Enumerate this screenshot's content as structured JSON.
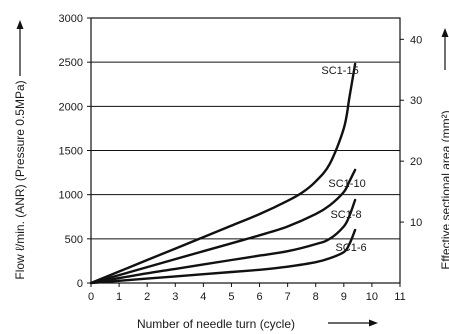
{
  "chart_data": {
    "type": "line",
    "xlabel": "Number of needle turn (cycle)",
    "ylabel": "Flow ℓ/min. (ANR) (Pressure 0.5MPa)",
    "y2label": "Effective sectional area (mm²)",
    "xlim": [
      0,
      11
    ],
    "ylim": [
      0,
      3000
    ],
    "y2lim": [
      0,
      43.5
    ],
    "xticks": [
      "0",
      "1",
      "2",
      "3",
      "4",
      "5",
      "6",
      "7",
      "8",
      "9",
      "10",
      "11"
    ],
    "yticks": [
      "0",
      "500",
      "1000",
      "1500",
      "2000",
      "2500",
      "3000"
    ],
    "y2ticks": [
      "10",
      "20",
      "30",
      "40"
    ],
    "grid_y": [
      500,
      1000,
      1500,
      2000,
      2500
    ],
    "series": [
      {
        "name": "SC1-15",
        "x": [
          0,
          1,
          2,
          3,
          4,
          5,
          6,
          7,
          7.5,
          8,
          8.5,
          9,
          9.2,
          9.4
        ],
        "y": [
          0,
          130,
          260,
          390,
          520,
          650,
          780,
          930,
          1020,
          1150,
          1350,
          1750,
          2100,
          2480
        ]
      },
      {
        "name": "SC1-10",
        "x": [
          0,
          1,
          2,
          3,
          4,
          5,
          6,
          7,
          8,
          8.5,
          9,
          9.2,
          9.4
        ],
        "y": [
          0,
          90,
          180,
          270,
          360,
          450,
          540,
          640,
          780,
          880,
          1030,
          1150,
          1280
        ]
      },
      {
        "name": "SC1-8",
        "x": [
          0,
          1,
          2,
          3,
          4,
          5,
          6,
          7,
          8,
          8.5,
          9,
          9.2,
          9.4
        ],
        "y": [
          0,
          55,
          110,
          160,
          210,
          260,
          310,
          360,
          440,
          500,
          640,
          760,
          940
        ]
      },
      {
        "name": "SC1-6",
        "x": [
          0,
          1,
          2,
          3,
          4,
          5,
          6,
          7,
          8,
          8.5,
          9,
          9.2,
          9.4
        ],
        "y": [
          0,
          25,
          50,
          75,
          100,
          125,
          150,
          185,
          235,
          280,
          350,
          440,
          600
        ]
      }
    ]
  }
}
